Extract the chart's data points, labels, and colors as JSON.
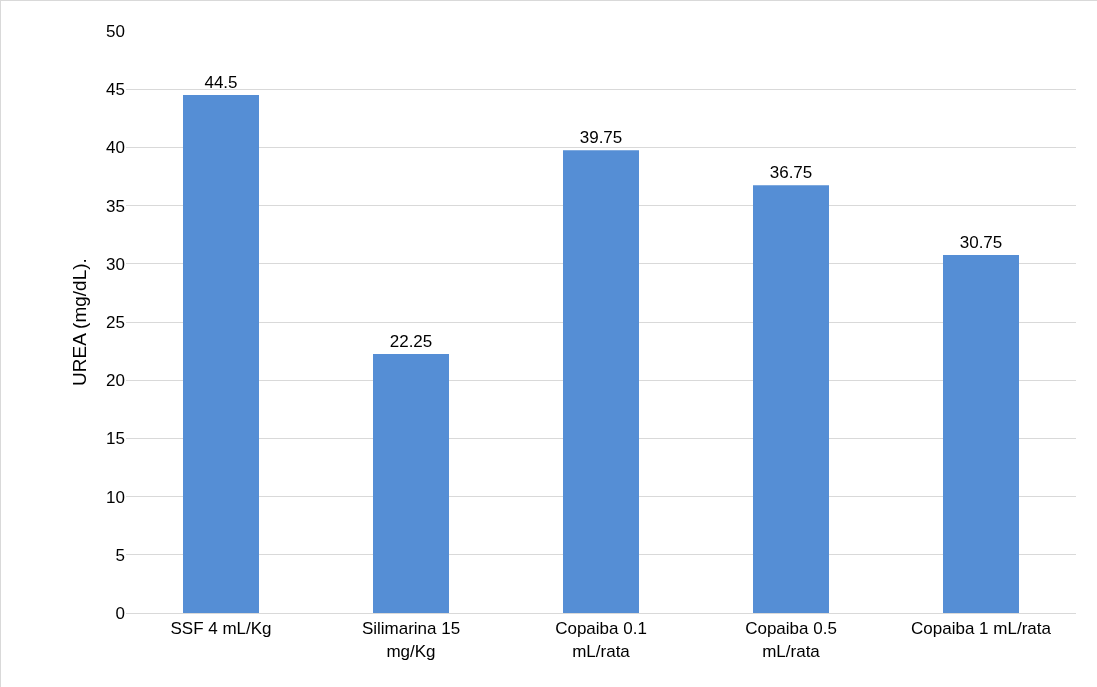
{
  "chart_data": {
    "type": "bar",
    "ylabel": "UREA (mg/dL).",
    "categories": [
      "SSF 4 mL/Kg",
      "Silimarina 15 mg/Kg",
      "Copaiba 0.1 mL/rata",
      "Copaiba 0.5 mL/rata",
      "Copaiba 1 mL/rata"
    ],
    "values": [
      44.5,
      22.25,
      39.75,
      36.75,
      30.75
    ],
    "color": "#558ed5",
    "ylim": [
      0,
      50
    ],
    "yticks": [
      0,
      5,
      10,
      15,
      20,
      25,
      30,
      35,
      40,
      45,
      50
    ],
    "grid": "y",
    "data_labels": true,
    "legend": false
  }
}
